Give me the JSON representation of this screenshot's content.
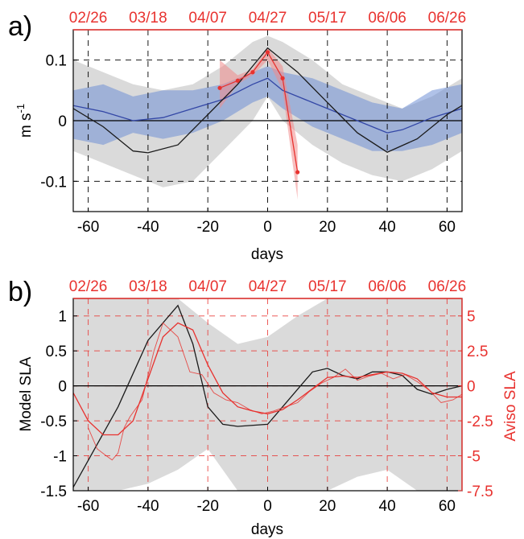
{
  "colors": {
    "black": "#1a1a1a",
    "red": "#e8322f",
    "blue": "#3347a6",
    "blue_fill": "#6f8fd6",
    "gray_fill": "#d6d6d6",
    "red_fill": "#f08a8a"
  },
  "chart_data": [
    {
      "panel": "a)",
      "type": "line",
      "ylabel": "m s",
      "ylabel_sup": "-1",
      "xlabel": "days",
      "xlim": [
        -65,
        65
      ],
      "ylim": [
        -0.15,
        0.15
      ],
      "xticks": [
        -60,
        -40,
        -20,
        0,
        20,
        40,
        60
      ],
      "xtick_labels": [
        "-60",
        "-40",
        "-20",
        "0",
        "20",
        "40",
        "60"
      ],
      "yticks": [
        -0.1,
        0,
        0.1
      ],
      "ytick_labels": [
        "-0.1",
        "0",
        "0.1"
      ],
      "top_ticks": [
        -60,
        -40,
        -20,
        0,
        20,
        40,
        60
      ],
      "top_tick_labels": [
        "02/26",
        "03/18",
        "04/07",
        "04/27",
        "05/17",
        "06/06",
        "06/26"
      ],
      "grid": true,
      "zero_line": true,
      "series": [
        {
          "kind": "band",
          "color": "#d6d6d6",
          "x": [
            -65,
            -55,
            -45,
            -35,
            -25,
            -15,
            -5,
            0,
            5,
            15,
            25,
            35,
            45,
            55,
            65
          ],
          "upper": [
            0.1,
            0.08,
            0.06,
            0.05,
            0.06,
            0.09,
            0.13,
            0.14,
            0.13,
            0.1,
            0.06,
            0.04,
            0.02,
            0.04,
            0.07
          ],
          "lower": [
            -0.05,
            -0.07,
            -0.09,
            -0.11,
            -0.1,
            -0.05,
            0.0,
            0.04,
            0.0,
            -0.04,
            -0.07,
            -0.09,
            -0.1,
            -0.08,
            -0.05
          ]
        },
        {
          "kind": "band",
          "color": "#6f8fd6",
          "x": [
            -65,
            -55,
            -45,
            -35,
            -25,
            -15,
            -5,
            0,
            5,
            15,
            25,
            35,
            45,
            55,
            65
          ],
          "upper": [
            0.05,
            0.06,
            0.04,
            0.05,
            0.05,
            0.06,
            0.08,
            0.09,
            0.08,
            0.07,
            0.05,
            0.03,
            0.02,
            0.05,
            0.06
          ],
          "lower": [
            -0.03,
            -0.04,
            -0.02,
            -0.03,
            -0.02,
            0.0,
            0.03,
            0.04,
            0.02,
            -0.01,
            -0.03,
            -0.05,
            -0.05,
            -0.04,
            -0.02
          ]
        },
        {
          "kind": "line",
          "color": "#3347a6",
          "x": [
            -65,
            -55,
            -45,
            -35,
            -25,
            -15,
            -5,
            0,
            5,
            15,
            25,
            35,
            40,
            45,
            55,
            65
          ],
          "y": [
            0.025,
            0.015,
            0.0,
            0.005,
            0.02,
            0.035,
            0.06,
            0.07,
            0.05,
            0.03,
            0.01,
            -0.01,
            -0.02,
            -0.015,
            0.005,
            0.02
          ]
        },
        {
          "kind": "line",
          "color": "#1a1a1a",
          "x": [
            -65,
            -55,
            -45,
            -40,
            -30,
            -20,
            -10,
            0,
            10,
            20,
            30,
            40,
            50,
            60,
            65
          ],
          "y": [
            0.02,
            -0.01,
            -0.05,
            -0.053,
            -0.04,
            0.01,
            0.06,
            0.12,
            0.08,
            0.03,
            -0.02,
            -0.052,
            -0.03,
            0.01,
            0.025
          ]
        },
        {
          "kind": "band",
          "color": "#f08a8a",
          "x": [
            -16,
            -10,
            -5,
            0,
            5,
            10
          ],
          "upper": [
            0.1,
            0.075,
            0.085,
            0.12,
            0.09,
            -0.04
          ],
          "lower": [
            0.02,
            0.06,
            0.075,
            0.1,
            0.05,
            -0.13
          ]
        },
        {
          "kind": "line",
          "color": "#e8322f",
          "markers": true,
          "x": [
            -16,
            -10,
            -5,
            0,
            5,
            10
          ],
          "y": [
            0.054,
            0.066,
            0.08,
            0.113,
            0.07,
            -0.085
          ]
        }
      ]
    },
    {
      "panel": "b)",
      "type": "line",
      "ylabel": "Model SLA",
      "ylabel_right": "Aviso SLA",
      "xlabel": "days",
      "xlim": [
        -65,
        65
      ],
      "ylim": [
        -1.5,
        1.25
      ],
      "ylim_right": [
        -7.5,
        6.25
      ],
      "xticks": [
        -60,
        -40,
        -20,
        0,
        20,
        40,
        60
      ],
      "xtick_labels": [
        "-60",
        "-40",
        "-20",
        "0",
        "20",
        "40",
        "60"
      ],
      "yticks": [
        -1.5,
        -1,
        -0.5,
        0,
        0.5,
        1
      ],
      "ytick_labels": [
        "-1.5",
        "-1",
        "-0.5",
        "0",
        "0.5",
        "1"
      ],
      "yticks_right": [
        -7.5,
        -5,
        -2.5,
        0,
        2.5,
        5
      ],
      "ytick_labels_right": [
        "-7.5",
        "-5",
        "-2.5",
        "0",
        "2.5",
        "5"
      ],
      "top_ticks": [
        -60,
        -40,
        -20,
        0,
        20,
        40,
        60
      ],
      "top_tick_labels": [
        "02/26",
        "03/18",
        "04/07",
        "04/27",
        "05/17",
        "06/06",
        "06/26"
      ],
      "grid": true,
      "zero_line": true,
      "series": [
        {
          "kind": "band",
          "color": "#d6d6d6",
          "x": [
            -65,
            -60,
            -50,
            -40,
            -30,
            -20,
            -10,
            0,
            10,
            20,
            30,
            40,
            50,
            60,
            65
          ],
          "upper": [
            1.25,
            1.25,
            1.25,
            1.25,
            1.25,
            0.9,
            0.6,
            0.7,
            1.0,
            1.25,
            1.25,
            1.25,
            1.25,
            1.25,
            1.25
          ],
          "lower": [
            -1.5,
            -1.5,
            -1.5,
            -1.4,
            -1.2,
            -0.9,
            -1.5,
            -1.5,
            -1.5,
            -1.5,
            -1.3,
            -1.2,
            -1.5,
            -1.5,
            -1.5
          ]
        },
        {
          "kind": "line",
          "color": "#1a1a1a",
          "x": [
            -65,
            -50,
            -40,
            -30,
            -25,
            -20,
            -15,
            -10,
            0,
            5,
            15,
            20,
            25,
            30,
            35,
            40,
            45,
            50,
            55,
            60,
            65
          ],
          "y": [
            -1.45,
            -0.3,
            0.65,
            1.15,
            0.6,
            -0.3,
            -0.55,
            -0.58,
            -0.55,
            -0.3,
            0.2,
            0.25,
            0.15,
            0.1,
            0.2,
            0.2,
            0.15,
            -0.05,
            -0.12,
            -0.05,
            0.0
          ]
        },
        {
          "kind": "line",
          "color": "#e8322f",
          "axis": "right",
          "x": [
            -65,
            -60,
            -55,
            -50,
            -45,
            -40,
            -35,
            -30,
            -25,
            -20,
            -15,
            -10,
            -5,
            0,
            5,
            10,
            15,
            20,
            25,
            30,
            35,
            40,
            45,
            50,
            55,
            60,
            65
          ],
          "y": [
            -0.5,
            -2.5,
            -3.5,
            -3.5,
            -2.5,
            0.5,
            3.5,
            4.5,
            4.0,
            1.5,
            -0.5,
            -1.5,
            -1.8,
            -2.0,
            -1.7,
            -1.0,
            -0.2,
            0.6,
            0.7,
            0.6,
            0.8,
            1.0,
            0.9,
            0.5,
            -0.5,
            -0.8,
            -0.8
          ]
        },
        {
          "kind": "line",
          "color": "#e8322f",
          "axis": "right",
          "thin": true,
          "x": [
            -60,
            -57,
            -54,
            -52,
            -50,
            -48,
            -46,
            -42,
            -38,
            -35,
            -30,
            -26,
            -22,
            -18,
            -14,
            -10,
            -6,
            -2,
            2,
            6,
            10,
            14,
            18,
            22,
            26,
            30,
            34,
            38,
            42,
            46,
            50,
            54,
            58,
            62,
            65
          ],
          "y": [
            -3.0,
            -4.5,
            -5.0,
            -5.3,
            -4.8,
            -3.0,
            -2.2,
            -1.0,
            2.5,
            4.5,
            3.5,
            1.0,
            0.8,
            -0.5,
            -1.0,
            -1.2,
            -1.7,
            -2.0,
            -1.8,
            -1.5,
            -1.2,
            -0.4,
            0.2,
            0.6,
            1.2,
            0.4,
            0.7,
            0.9,
            0.5,
            0.8,
            0.3,
            -0.3,
            -1.2,
            -1.0,
            -0.6
          ]
        }
      ]
    }
  ]
}
